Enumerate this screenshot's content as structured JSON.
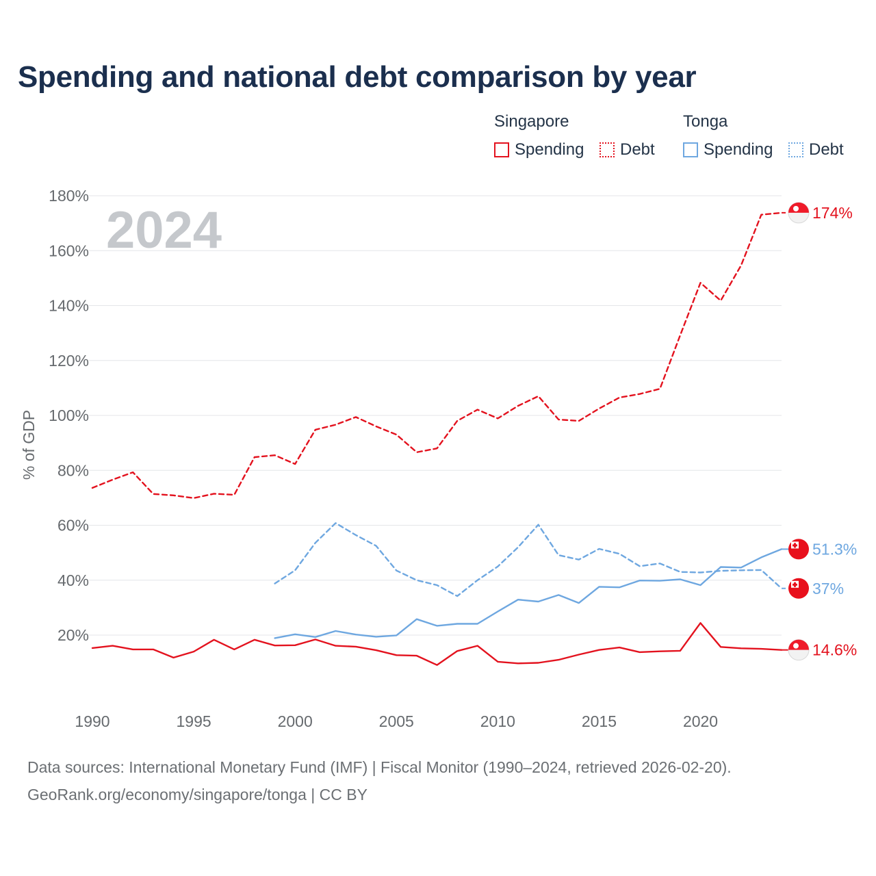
{
  "title": "Spending and national debt comparison by year",
  "legend": {
    "groups": [
      {
        "name": "Singapore",
        "color": "#e3121e",
        "items": [
          {
            "label": "Spending",
            "style": "solid"
          },
          {
            "label": "Debt",
            "style": "dotted"
          }
        ]
      },
      {
        "name": "Tonga",
        "color": "#6ea7e0",
        "items": [
          {
            "label": "Spending",
            "style": "solid"
          },
          {
            "label": "Debt",
            "style": "dotted"
          }
        ]
      }
    ]
  },
  "footer": {
    "line1": "Data sources: International Monetary Fund (IMF) | Fiscal Monitor (1990–2024, retrieved 2026-02-20).",
    "line2": "GeoRank.org/economy/singapore/tonga | CC BY"
  },
  "chart_data": {
    "type": "line",
    "title": "Spending and national debt comparison by year",
    "year_watermark": "2024",
    "ylabel": "% of GDP",
    "xlabel": "",
    "xlim": [
      1990,
      2024
    ],
    "ylim": [
      -20,
      180
    ],
    "x_ticks": [
      1990,
      1995,
      2000,
      2005,
      2010,
      2015,
      2020
    ],
    "x_tick_labels": [
      "1990",
      "1995",
      "2000",
      "2005",
      "2010",
      "2015",
      "2020"
    ],
    "y_ticks": [
      20,
      40,
      60,
      80,
      100,
      120,
      140,
      160,
      180
    ],
    "y_tick_labels": [
      "20%",
      "40%",
      "60%",
      "80%",
      "100%",
      "120%",
      "140%",
      "160%",
      "180%"
    ],
    "grid": true,
    "series": [
      {
        "name": "Singapore Debt",
        "country": "Singapore",
        "color": "#e3121e",
        "dash": "dashed",
        "x": [
          1990,
          1991,
          1992,
          1993,
          1994,
          1995,
          1996,
          1997,
          1998,
          1999,
          2000,
          2001,
          2002,
          2003,
          2004,
          2005,
          2006,
          2007,
          2008,
          2009,
          2010,
          2011,
          2012,
          2013,
          2014,
          2015,
          2016,
          2017,
          2018,
          2019,
          2020,
          2021,
          2022,
          2023,
          2024
        ],
        "values": [
          73.6,
          76.6,
          79.3,
          71.4,
          70.9,
          69.9,
          71.5,
          71.1,
          84.8,
          85.5,
          82.3,
          94.8,
          96.6,
          99.4,
          96.0,
          93.0,
          86.6,
          88.0,
          98.0,
          102.1,
          98.9,
          103.5,
          107.0,
          98.5,
          98.0,
          102.5,
          106.5,
          107.8,
          109.7,
          129.2,
          148.3,
          141.8,
          154.6,
          173.1,
          173.8
        ],
        "end_label": "174%",
        "flag": "singapore"
      },
      {
        "name": "Tonga Debt",
        "country": "Tonga",
        "color": "#6ea7e0",
        "dash": "dashed",
        "x": [
          1999,
          2000,
          2001,
          2002,
          2003,
          2004,
          2005,
          2006,
          2007,
          2008,
          2009,
          2010,
          2011,
          2012,
          2013,
          2014,
          2015,
          2016,
          2017,
          2018,
          2019,
          2020,
          2021,
          2022,
          2023,
          2024
        ],
        "values": [
          38.8,
          43.6,
          53.6,
          60.8,
          56.4,
          52.5,
          43.5,
          40.0,
          38.2,
          34.2,
          40.0,
          45.0,
          52.0,
          60.2,
          49.1,
          47.5,
          51.4,
          49.6,
          45.1,
          46.1,
          43.0,
          42.8,
          43.4,
          43.6,
          43.7,
          37.0
        ],
        "end_label": "37%",
        "flag": "tonga"
      },
      {
        "name": "Tonga Spending",
        "country": "Tonga",
        "color": "#6ea7e0",
        "dash": "solid",
        "x": [
          1999,
          2000,
          2001,
          2002,
          2003,
          2004,
          2005,
          2006,
          2007,
          2008,
          2009,
          2010,
          2011,
          2012,
          2013,
          2014,
          2015,
          2016,
          2017,
          2018,
          2019,
          2020,
          2021,
          2022,
          2023,
          2024
        ],
        "values": [
          18.9,
          20.3,
          19.3,
          21.5,
          20.2,
          19.4,
          19.9,
          25.8,
          23.4,
          24.1,
          24.1,
          28.6,
          32.9,
          32.2,
          34.6,
          31.7,
          37.6,
          37.4,
          39.9,
          39.8,
          40.3,
          38.2,
          44.8,
          44.6,
          48.3,
          51.3
        ],
        "end_label": "51.3%",
        "flag": "tonga"
      },
      {
        "name": "Singapore Spending",
        "country": "Singapore",
        "color": "#e3121e",
        "dash": "solid",
        "x": [
          1990,
          1991,
          1992,
          1993,
          1994,
          1995,
          1996,
          1997,
          1998,
          1999,
          2000,
          2001,
          2002,
          2003,
          2004,
          2005,
          2006,
          2007,
          2008,
          2009,
          2010,
          2011,
          2012,
          2013,
          2014,
          2015,
          2016,
          2017,
          2018,
          2019,
          2020,
          2021,
          2022,
          2023,
          2024
        ],
        "values": [
          15.3,
          16.1,
          14.8,
          14.8,
          11.8,
          14.0,
          18.3,
          14.8,
          18.3,
          16.2,
          16.3,
          18.4,
          16.1,
          15.8,
          14.5,
          12.7,
          12.5,
          9.1,
          14.2,
          16.1,
          10.3,
          9.7,
          9.9,
          11.0,
          12.9,
          14.6,
          15.5,
          13.8,
          14.1,
          14.3,
          24.4,
          15.7,
          15.2,
          15.0,
          14.6
        ],
        "end_label": "14.6%",
        "flag": "singapore"
      }
    ]
  }
}
